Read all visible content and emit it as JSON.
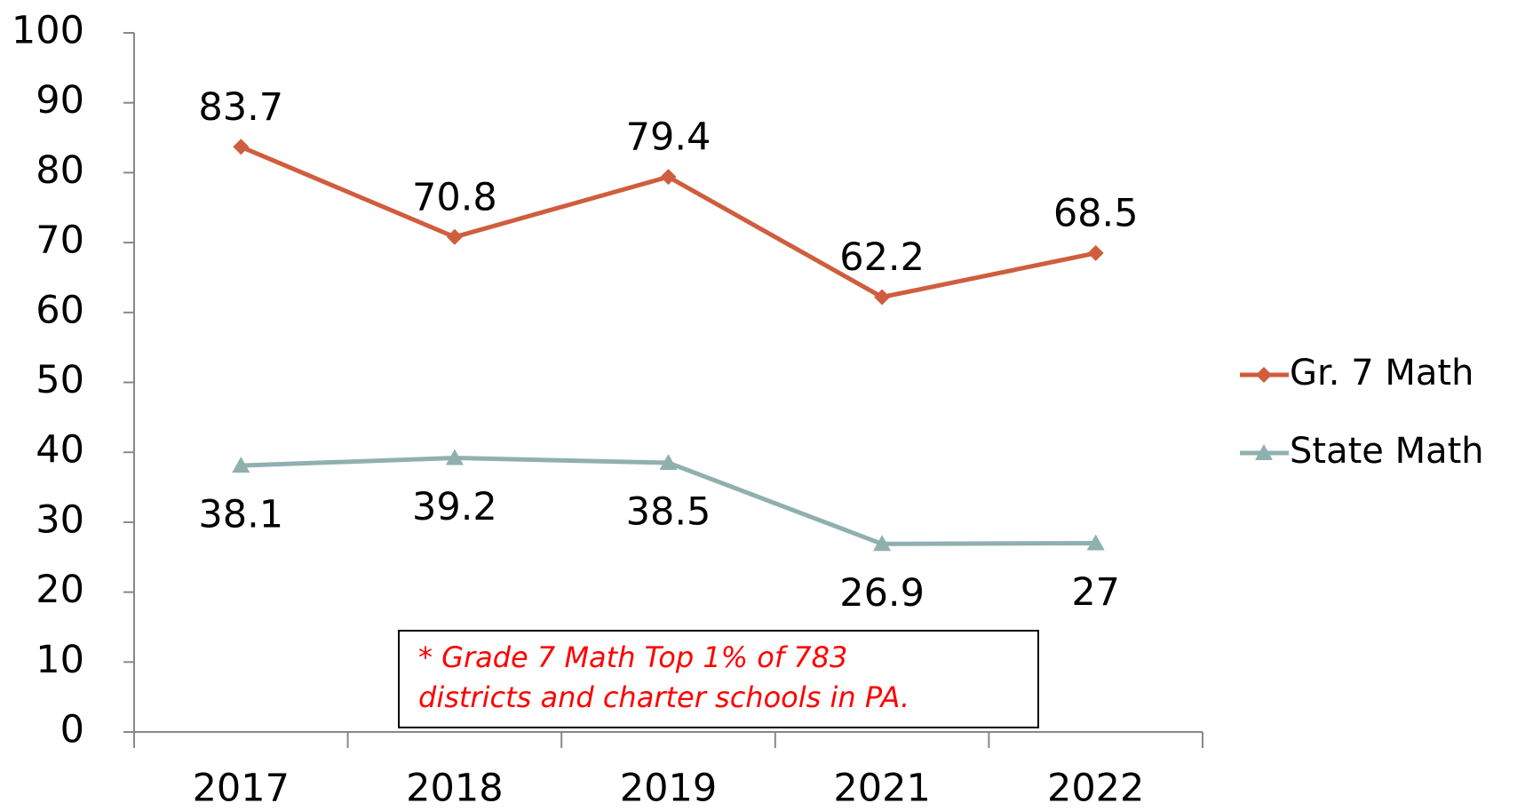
{
  "chart_data": {
    "type": "line",
    "categories": [
      "2017",
      "2018",
      "2019",
      "2021",
      "2022"
    ],
    "series": [
      {
        "name": "Gr. 7 Math",
        "color": "#cf5d3e",
        "marker": "diamond",
        "values": [
          83.7,
          70.8,
          79.4,
          62.2,
          68.5
        ]
      },
      {
        "name": "State Math",
        "color": "#8fb0ae",
        "marker": "triangle",
        "values": [
          38.1,
          39.2,
          38.5,
          26.9,
          27
        ]
      }
    ],
    "ylim": [
      0,
      100
    ],
    "yticks": [
      0,
      10,
      20,
      30,
      40,
      50,
      60,
      70,
      80,
      90,
      100
    ],
    "grid": false,
    "legend": "right",
    "annotation": [
      "* Grade 7 Math Top 1% of 783",
      "districts and charter schools in PA."
    ]
  }
}
